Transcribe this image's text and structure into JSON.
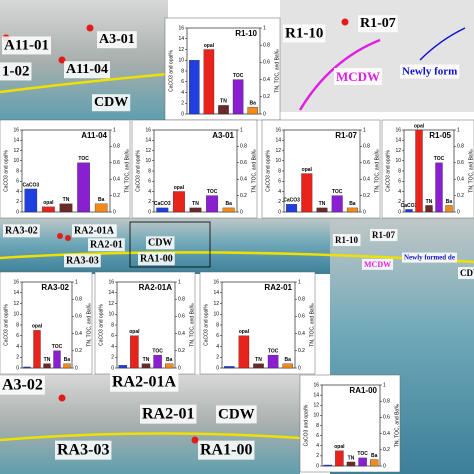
{
  "map_labels": [
    "A11-01",
    "A3-01",
    "1-02",
    "A11-04",
    "CDW",
    "R1-10",
    "R1-07",
    "MCDW",
    "Newly form",
    "RA3-02",
    "RA2-01A",
    "RA2-01",
    "CDW",
    "RA3-03",
    "RA1-00",
    "R1-10",
    "R1-07",
    "MCDW",
    "Newly formed de",
    "CDV",
    "A3-02",
    "RA2-01A",
    "RA2-01",
    "CDW",
    "RA3-03",
    "RA1-00"
  ],
  "chart_data": [
    {
      "type": "bar",
      "title": "R1-10",
      "ylabel": "CaCO3 and opal%",
      "y2label": "TN, TOC, and Ba‰",
      "categories": [
        null,
        "opal",
        "TN",
        "TOC",
        "Ba"
      ],
      "values": [
        10,
        12,
        0.1,
        0.4,
        0.08
      ],
      "colors": [
        "#1f3fe0",
        "#e8231c",
        "#6b2a2a",
        "#8a1fd1",
        "#f08a1c"
      ],
      "axes": [
        "y",
        "y",
        "y2",
        "y2",
        "y2"
      ],
      "ylim": [
        0,
        16
      ],
      "yticks": [
        0,
        2,
        4,
        6,
        8,
        10,
        12,
        14,
        16
      ],
      "y2lim": [
        0,
        1
      ],
      "y2ticks": [
        0,
        0.2,
        0.4,
        0.6,
        0.8,
        1
      ]
    },
    {
      "type": "bar",
      "title": "A11-04",
      "ylabel": "CaCO3 and opal%",
      "y2label": "TN, TOC, and Ba‰",
      "categories": [
        "CaCO3",
        "opal",
        "TN",
        "TOC",
        "Ba"
      ],
      "values": [
        4.5,
        1,
        0.1,
        0.6,
        0.1
      ],
      "colors": [
        "#1f3fe0",
        "#e8231c",
        "#6b2a2a",
        "#8a1fd1",
        "#f08a1c"
      ],
      "axes": [
        "y",
        "y",
        "y2",
        "y2",
        "y2"
      ],
      "ylim": [
        0,
        16
      ],
      "yticks": [
        0,
        2,
        4,
        6,
        8,
        10,
        12,
        14,
        16
      ],
      "y2lim": [
        0,
        1
      ],
      "y2ticks": [
        0,
        0.2,
        0.4,
        0.6,
        0.8,
        1
      ]
    },
    {
      "type": "bar",
      "title": "A3-01",
      "ylabel": "CaCO3 and opal%",
      "y2label": "TN, TOC, and Ba‰",
      "categories": [
        "CaCO3",
        "opal",
        "TN",
        "TOC",
        "Ba"
      ],
      "values": [
        0.8,
        4,
        0.05,
        0.2,
        0.05
      ],
      "colors": [
        "#1f3fe0",
        "#e8231c",
        "#6b2a2a",
        "#8a1fd1",
        "#f08a1c"
      ],
      "axes": [
        "y",
        "y",
        "y2",
        "y2",
        "y2"
      ],
      "ylim": [
        0,
        16
      ],
      "yticks": [
        0,
        2,
        4,
        6,
        8,
        10,
        12,
        14,
        16
      ],
      "y2lim": [
        0,
        1
      ],
      "y2ticks": [
        0,
        0.2,
        0.4,
        0.6,
        0.8,
        1
      ]
    },
    {
      "type": "bar",
      "title": "R1-07",
      "ylabel": "CaCO3 and opal%",
      "y2label": "TN, TOC, and Ba‰",
      "categories": [
        "CaCO3",
        "opal",
        "TN",
        "TOC",
        "Ba"
      ],
      "values": [
        1.5,
        7.5,
        0.05,
        0.2,
        0.05
      ],
      "colors": [
        "#1f3fe0",
        "#e8231c",
        "#6b2a2a",
        "#8a1fd1",
        "#f08a1c"
      ],
      "axes": [
        "y",
        "y",
        "y2",
        "y2",
        "y2"
      ],
      "ylim": [
        0,
        16
      ],
      "yticks": [
        0,
        2,
        4,
        6,
        8,
        10,
        12,
        14,
        16
      ],
      "y2lim": [
        0,
        1
      ],
      "y2ticks": [
        0,
        0.2,
        0.4,
        0.6,
        0.8,
        1
      ]
    },
    {
      "type": "bar",
      "title": "R1-05",
      "ylabel": "CaCO3 and opal%",
      "y2label": "TN, TOC, and Ba‰",
      "categories": [
        "CaCO3",
        "opal",
        "TN",
        "TOC",
        "Ba"
      ],
      "values": [
        0.5,
        16,
        0.08,
        0.6,
        0.08
      ],
      "colors": [
        "#1f3fe0",
        "#e8231c",
        "#6b2a2a",
        "#8a1fd1",
        "#f08a1c"
      ],
      "axes": [
        "y",
        "y",
        "y2",
        "y2",
        "y2"
      ],
      "ylim": [
        0,
        16
      ],
      "yticks": [
        0,
        2,
        4,
        6,
        8,
        10,
        12,
        14,
        16
      ],
      "y2lim": [
        0,
        1
      ],
      "y2ticks": [
        0,
        0.2,
        0.4,
        0.6,
        0.8,
        1
      ]
    },
    {
      "type": "bar",
      "title": "RA3-02",
      "ylabel": "CaCO3 and opal%",
      "y2label": "TN, TOC, and Ba‰",
      "categories": [
        null,
        "opal",
        "TN",
        "TOC",
        "Ba"
      ],
      "values": [
        0.2,
        7,
        0.05,
        0.2,
        0.05
      ],
      "colors": [
        "#1f3fe0",
        "#e8231c",
        "#6b2a2a",
        "#8a1fd1",
        "#f08a1c"
      ],
      "axes": [
        "y",
        "y",
        "y2",
        "y2",
        "y2"
      ],
      "ylim": [
        0,
        16
      ],
      "yticks": [
        0,
        2,
        4,
        6,
        8,
        10,
        12,
        14,
        16
      ],
      "y2lim": [
        0,
        1
      ],
      "y2ticks": [
        0,
        0.2,
        0.4,
        0.6,
        0.8,
        1
      ]
    },
    {
      "type": "bar",
      "title": "RA2-01A",
      "ylabel": "CaCO3 and opal%",
      "y2label": "TN, TOC, and Ba‰",
      "categories": [
        null,
        "opal",
        "TN",
        "TOC",
        "Ba"
      ],
      "values": [
        0.5,
        6,
        0.05,
        0.15,
        0.05
      ],
      "colors": [
        "#1f3fe0",
        "#e8231c",
        "#6b2a2a",
        "#8a1fd1",
        "#f08a1c"
      ],
      "axes": [
        "y",
        "y",
        "y2",
        "y2",
        "y2"
      ],
      "ylim": [
        0,
        16
      ],
      "yticks": [
        0,
        2,
        4,
        6,
        8,
        10,
        12,
        14,
        16
      ],
      "y2lim": [
        0,
        1
      ],
      "y2ticks": [
        0,
        0.2,
        0.4,
        0.6,
        0.8,
        1
      ]
    },
    {
      "type": "bar",
      "title": "RA2-01",
      "ylabel": "CaCO3 and opal%",
      "y2label": "TN, TOC, and Ba‰",
      "categories": [
        null,
        "opal",
        "TN",
        "TOC",
        "Ba"
      ],
      "values": [
        0.3,
        6,
        0.05,
        0.15,
        0.05
      ],
      "colors": [
        "#1f3fe0",
        "#e8231c",
        "#6b2a2a",
        "#8a1fd1",
        "#f08a1c"
      ],
      "axes": [
        "y",
        "y",
        "y2",
        "y2",
        "y2"
      ],
      "ylim": [
        0,
        16
      ],
      "yticks": [
        0,
        2,
        4,
        6,
        8,
        10,
        12,
        14,
        16
      ],
      "y2lim": [
        0,
        1
      ],
      "y2ticks": [
        0,
        0.2,
        0.4,
        0.6,
        0.8,
        1
      ]
    },
    {
      "type": "bar",
      "title": "RA1-00",
      "ylabel": "CaCO3 and opal%",
      "y2label": "TN, TOC, and Ba‰",
      "categories": [
        null,
        "opal",
        "TN",
        "TOC",
        "Ba"
      ],
      "values": [
        0.2,
        3,
        0.05,
        0.1,
        0.08
      ],
      "colors": [
        "#1f3fe0",
        "#e8231c",
        "#6b2a2a",
        "#8a1fd1",
        "#f08a1c"
      ],
      "axes": [
        "y",
        "y",
        "y2",
        "y2",
        "y2"
      ],
      "ylim": [
        0,
        16
      ],
      "yticks": [
        0,
        2,
        4,
        6,
        8,
        10,
        12,
        14,
        16
      ],
      "y2lim": [
        0,
        1
      ],
      "y2ticks": [
        0,
        0.2,
        0.4,
        0.6,
        0.8,
        1
      ]
    }
  ]
}
